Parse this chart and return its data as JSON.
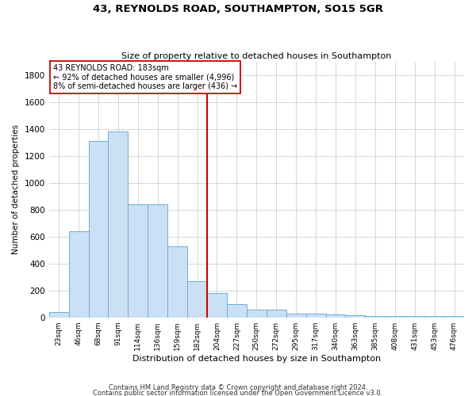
{
  "title": "43, REYNOLDS ROAD, SOUTHAMPTON, SO15 5GR",
  "subtitle": "Size of property relative to detached houses in Southampton",
  "xlabel": "Distribution of detached houses by size in Southampton",
  "ylabel": "Number of detached properties",
  "categories": [
    "23sqm",
    "46sqm",
    "68sqm",
    "91sqm",
    "114sqm",
    "136sqm",
    "159sqm",
    "182sqm",
    "204sqm",
    "227sqm",
    "250sqm",
    "272sqm",
    "295sqm",
    "317sqm",
    "340sqm",
    "363sqm",
    "385sqm",
    "408sqm",
    "431sqm",
    "453sqm",
    "476sqm"
  ],
  "values": [
    40,
    640,
    1310,
    1380,
    840,
    840,
    530,
    270,
    180,
    100,
    60,
    60,
    30,
    30,
    20,
    15,
    12,
    10,
    10,
    10,
    10
  ],
  "bar_color": "#cce0f5",
  "bar_edge_color": "#6baed6",
  "vline_x_index": 7,
  "vline_color": "#cc0000",
  "annotation_text": "43 REYNOLDS ROAD: 183sqm\n← 92% of detached houses are smaller (4,996)\n8% of semi-detached houses are larger (436) →",
  "annotation_box_color": "#ffffff",
  "annotation_box_edge": "#cc0000",
  "ylim": [
    0,
    1900
  ],
  "yticks": [
    0,
    200,
    400,
    600,
    800,
    1000,
    1200,
    1400,
    1600,
    1800
  ],
  "footnote1": "Contains HM Land Registry data © Crown copyright and database right 2024.",
  "footnote2": "Contains public sector information licensed under the Open Government Licence v3.0.",
  "background_color": "#ffffff",
  "grid_color": "#d0d0d0"
}
